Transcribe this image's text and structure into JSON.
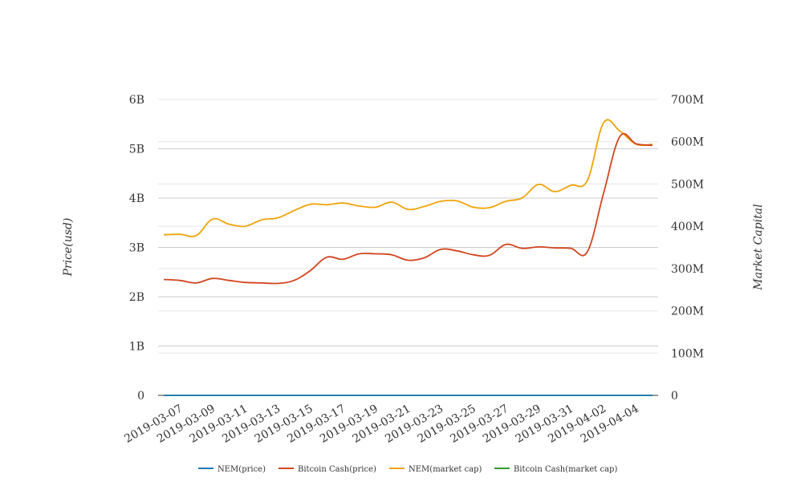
{
  "chart_data": {
    "type": "line",
    "title": "",
    "x": [
      "2019-03-06",
      "2019-03-07",
      "2019-03-08",
      "2019-03-09",
      "2019-03-10",
      "2019-03-11",
      "2019-03-12",
      "2019-03-13",
      "2019-03-14",
      "2019-03-15",
      "2019-03-16",
      "2019-03-17",
      "2019-03-18",
      "2019-03-19",
      "2019-03-20",
      "2019-03-21",
      "2019-03-22",
      "2019-03-23",
      "2019-03-24",
      "2019-03-25",
      "2019-03-26",
      "2019-03-27",
      "2019-03-28",
      "2019-03-29",
      "2019-03-30",
      "2019-03-31",
      "2019-04-01",
      "2019-04-02",
      "2019-04-03",
      "2019-04-04",
      "2019-04-05"
    ],
    "x_ticks": [
      "2019-03-07",
      "2019-03-09",
      "2019-03-11",
      "2019-03-13",
      "2019-03-15",
      "2019-03-17",
      "2019-03-19",
      "2019-03-21",
      "2019-03-23",
      "2019-03-25",
      "2019-03-27",
      "2019-03-29",
      "2019-03-31",
      "2019-04-02",
      "2019-04-04"
    ],
    "y_left": {
      "label": "Price(usd)",
      "ticks": [
        "0",
        "1B",
        "2B",
        "3B",
        "4B",
        "5B",
        "6B"
      ],
      "min": 0,
      "max": 6000000000
    },
    "y_right": {
      "label": "Market Capital",
      "ticks": [
        "0",
        "100M",
        "200M",
        "300M",
        "400M",
        "500M",
        "600M",
        "700M"
      ],
      "min": 0,
      "max": 700000000
    },
    "grid": true,
    "legend_position": "bottom",
    "series": [
      {
        "name": "NEM(price)",
        "axis": "left",
        "color": "#1f77b4",
        "values": [
          0.04,
          0.04,
          0.04,
          0.04,
          0.05,
          0.05,
          0.05,
          0.05,
          0.05,
          0.05,
          0.05,
          0.05,
          0.05,
          0.05,
          0.05,
          0.05,
          0.05,
          0.05,
          0.05,
          0.05,
          0.05,
          0.05,
          0.05,
          0.05,
          0.05,
          0.05,
          0.05,
          0.05,
          0.07,
          0.07,
          0.07
        ]
      },
      {
        "name": "Bitcoin Cash(price)",
        "axis": "left",
        "color": "#d2451e",
        "values": [
          2350000000,
          2330000000,
          2280000000,
          2370000000,
          2330000000,
          2290000000,
          2280000000,
          2270000000,
          2330000000,
          2530000000,
          2800000000,
          2760000000,
          2870000000,
          2870000000,
          2850000000,
          2740000000,
          2790000000,
          2960000000,
          2930000000,
          2850000000,
          2840000000,
          3060000000,
          2980000000,
          3010000000,
          2990000000,
          2980000000,
          2910000000,
          4100000000,
          5250000000,
          5100000000,
          5070000000
        ]
      },
      {
        "name": "NEM(market cap)",
        "axis": "right",
        "color": "#f0a30a",
        "values": [
          380000000,
          381000000,
          378000000,
          417000000,
          405000000,
          400000000,
          415000000,
          420000000,
          437000000,
          452000000,
          451000000,
          455000000,
          448000000,
          445000000,
          457000000,
          440000000,
          447000000,
          459000000,
          460000000,
          445000000,
          444000000,
          459000000,
          467000000,
          499000000,
          482000000,
          497000000,
          508000000,
          645000000,
          625000000,
          594000000,
          594000000
        ]
      },
      {
        "name": "Bitcoin Cash(market cap)",
        "axis": "right",
        "color": "#2ca02c",
        "values": [
          2,
          2,
          2,
          2,
          2,
          2,
          2,
          2,
          2,
          2,
          2,
          2,
          2,
          2,
          2,
          2,
          2,
          2,
          2,
          2,
          2,
          2,
          2,
          2,
          2,
          2,
          2,
          2,
          2,
          2,
          2
        ]
      }
    ]
  }
}
